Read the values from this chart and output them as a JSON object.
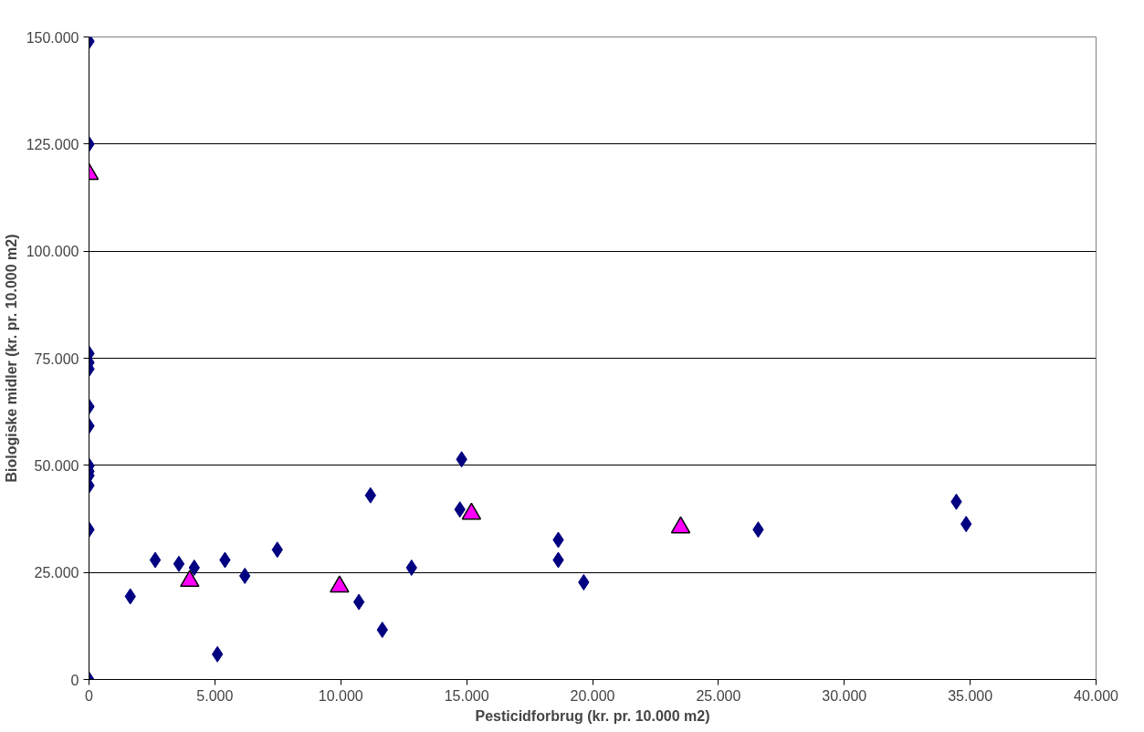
{
  "chart_data": {
    "type": "scatter",
    "xlabel": "Pesticidforbrug (kr. pr. 10.000 m2)",
    "ylabel": "Biologiske midler (kr. pr. 10.000 m2)",
    "xlim": [
      0,
      40000
    ],
    "ylim": [
      0,
      150000
    ],
    "xticks": [
      0,
      {
        "value": 5000,
        "label": "5.000"
      },
      {
        "value": 10000,
        "label": "10.000"
      },
      {
        "value": 15000,
        "label": "15.000"
      },
      {
        "value": 20000,
        "label": "20.000"
      },
      {
        "value": 25000,
        "label": "25.000"
      },
      {
        "value": 30000,
        "label": "30.000"
      },
      {
        "value": 35000,
        "label": "35.000"
      },
      {
        "value": 40000,
        "label": "40.000"
      }
    ],
    "yticks": [
      0,
      {
        "value": 25000,
        "label": "25.000"
      },
      {
        "value": 50000,
        "label": "50.000"
      },
      {
        "value": 75000,
        "label": "75.000"
      },
      {
        "value": 100000,
        "label": "100.000"
      },
      {
        "value": 125000,
        "label": "125.000"
      },
      {
        "value": 150000,
        "label": "150.000"
      }
    ],
    "grid": "y",
    "series": [
      {
        "color": "#000080",
        "marker": "diamond",
        "x": [
          0,
          0,
          0,
          0,
          0,
          0,
          0,
          0,
          0,
          0,
          0,
          0,
          0,
          1640,
          2630,
          3570,
          4180,
          5400,
          5100,
          6190,
          7480,
          10720,
          11180,
          11650,
          12810,
          14800,
          14730,
          18640,
          18640,
          19650,
          26580,
          34450,
          34840
        ],
        "values": [
          149000,
          125000,
          76100,
          74000,
          72500,
          63700,
          59200,
          49900,
          48600,
          47600,
          45300,
          35000,
          0,
          19400,
          27900,
          27000,
          26100,
          27900,
          5900,
          24200,
          30300,
          18100,
          43000,
          11600,
          26100,
          51400,
          39700,
          32600,
          27900,
          22700,
          35000,
          41500,
          36300
        ]
      },
      {
        "color": "#ff00ff",
        "marker": "triangle",
        "x": [
          0,
          4000,
          9950,
          15190,
          23500
        ],
        "values": [
          118000,
          23000,
          21700,
          38700,
          35500
        ]
      }
    ]
  }
}
